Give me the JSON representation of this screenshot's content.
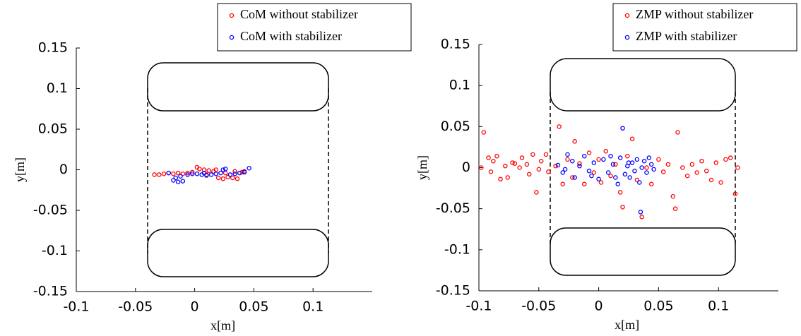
{
  "chart_data": [
    {
      "type": "scatter",
      "xlabel": "x[m]",
      "ylabel": "y[m]",
      "xlim": [
        -0.1,
        0.15
      ],
      "ylim": [
        -0.15,
        0.15
      ],
      "xticks": [
        -0.1,
        -0.05,
        0,
        0.05,
        0.1
      ],
      "yticks": [
        -0.15,
        -0.1,
        -0.05,
        0,
        0.05,
        0.1,
        0.15
      ],
      "series": [
        {
          "name": "CoM without stabilizer",
          "color": "#ff0000",
          "x": [
            -0.034,
            -0.03,
            -0.026,
            -0.022,
            -0.018,
            -0.014,
            -0.01,
            -0.006,
            -0.002,
            0.002,
            0.004,
            0.008,
            0.012,
            0.016,
            0.02,
            0.024,
            0.028,
            0.032,
            0.036,
            0.04,
            0.042,
            0.01,
            0.018,
            0.026,
            0.034
          ],
          "values": [
            -0.006,
            -0.006,
            -0.005,
            -0.004,
            -0.005,
            -0.004,
            -0.005,
            -0.004,
            -0.003,
            0.003,
            0.001,
            0.0,
            -0.001,
            -0.002,
            -0.01,
            -0.011,
            -0.009,
            -0.01,
            -0.011,
            -0.003,
            -0.002,
            -0.006,
            0.0,
            -0.004,
            -0.002
          ]
        },
        {
          "name": "CoM with stabilizer",
          "color": "#0000ff",
          "x": [
            -0.022,
            -0.018,
            -0.014,
            -0.01,
            -0.006,
            -0.002,
            0.002,
            0.006,
            0.01,
            0.014,
            0.018,
            0.022,
            0.024,
            0.026,
            0.03,
            0.034,
            0.038,
            0.042,
            0.046,
            -0.016,
            -0.012,
            0.008
          ],
          "values": [
            -0.004,
            -0.013,
            -0.015,
            -0.014,
            -0.006,
            -0.005,
            -0.005,
            -0.006,
            -0.007,
            -0.006,
            -0.005,
            -0.004,
            0.0,
            0.001,
            -0.006,
            -0.005,
            -0.004,
            -0.003,
            0.002,
            -0.01,
            -0.008,
            -0.004
          ]
        }
      ]
    },
    {
      "type": "scatter",
      "xlabel": "x[m]",
      "ylabel": "y[m]",
      "xlim": [
        -0.1,
        0.15
      ],
      "ylim": [
        -0.15,
        0.15
      ],
      "xticks": [
        -0.1,
        -0.05,
        0,
        0.05,
        0.1
      ],
      "yticks": [
        -0.15,
        -0.1,
        -0.05,
        0,
        0.05,
        0.1,
        0.15
      ],
      "series": [
        {
          "name": "ZMP without stabilizer",
          "color": "#ff0000",
          "x": [
            -0.098,
            -0.096,
            -0.092,
            -0.09,
            -0.088,
            -0.085,
            -0.082,
            -0.078,
            -0.076,
            -0.072,
            -0.07,
            -0.066,
            -0.064,
            -0.06,
            -0.058,
            -0.055,
            -0.052,
            -0.05,
            -0.048,
            -0.044,
            -0.042,
            -0.036,
            -0.033,
            -0.03,
            -0.026,
            -0.022,
            -0.02,
            -0.016,
            -0.012,
            -0.008,
            -0.004,
            0.0,
            0.002,
            0.006,
            0.01,
            0.014,
            0.018,
            0.02,
            0.024,
            0.028,
            0.032,
            0.036,
            0.04,
            0.044,
            0.05,
            0.054,
            0.058,
            0.062,
            0.064,
            0.066,
            0.07,
            0.074,
            0.078,
            0.082,
            0.086,
            0.09,
            0.094,
            0.098,
            0.102,
            0.106,
            0.11,
            0.114,
            0.116
          ],
          "values": [
            0.0,
            0.043,
            0.012,
            -0.005,
            0.008,
            0.014,
            -0.014,
            0.002,
            -0.012,
            0.006,
            0.005,
            0.0,
            0.012,
            0.004,
            -0.008,
            0.016,
            -0.03,
            -0.002,
            0.008,
            0.016,
            -0.005,
            0.002,
            0.05,
            -0.02,
            0.01,
            -0.012,
            0.032,
            0.005,
            -0.02,
            0.018,
            -0.006,
            0.01,
            -0.018,
            0.02,
            -0.01,
            0.004,
            -0.03,
            -0.048,
            0.014,
            0.035,
            -0.015,
            -0.06,
            0.0,
            -0.02,
            0.01,
            -0.005,
            0.004,
            -0.035,
            -0.05,
            0.043,
            0.0,
            -0.01,
            0.004,
            -0.006,
            0.008,
            -0.004,
            -0.015,
            0.006,
            -0.018,
            0.01,
            0.012,
            -0.032,
            0.0
          ]
        },
        {
          "name": "ZMP with stabilizer",
          "color": "#0000ff",
          "x": [
            -0.034,
            -0.03,
            -0.026,
            -0.022,
            -0.02,
            -0.016,
            -0.012,
            -0.008,
            -0.004,
            0.0,
            0.004,
            0.008,
            0.012,
            0.016,
            0.018,
            0.02,
            0.022,
            0.024,
            0.026,
            0.028,
            0.03,
            0.032,
            0.034,
            0.035,
            0.036,
            0.038,
            0.04,
            0.042,
            0.044,
            0.046,
            -0.028,
            0.01,
            -0.006,
            0.025,
            0.014
          ],
          "values": [
            0.003,
            -0.006,
            0.016,
            0.008,
            -0.012,
            0.002,
            0.014,
            -0.004,
            0.006,
            -0.014,
            0.01,
            -0.006,
            0.004,
            -0.02,
            0.012,
            0.048,
            -0.008,
            0.002,
            -0.012,
            0.006,
            -0.004,
            0.01,
            -0.018,
            -0.054,
            0.0,
            0.008,
            -0.006,
            0.012,
            0.004,
            -0.002,
            -0.002,
            0.014,
            -0.01,
            0.006,
            -0.012
          ]
        }
      ]
    }
  ]
}
